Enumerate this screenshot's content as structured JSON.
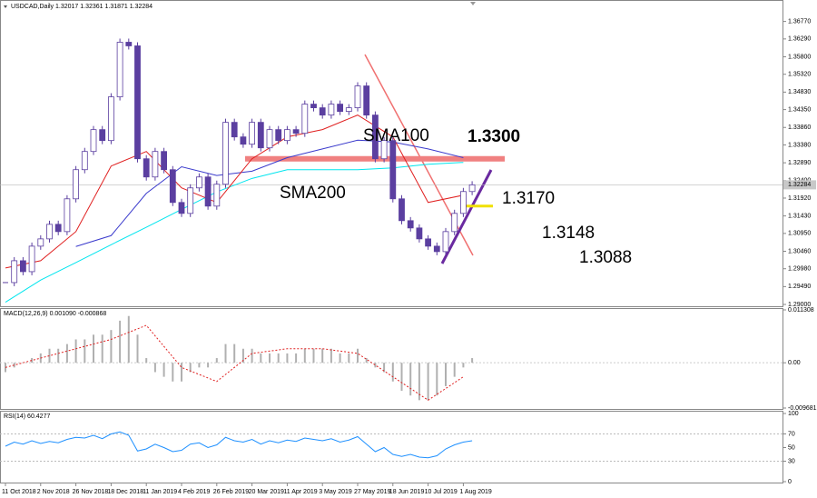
{
  "chart_data": [
    {
      "type": "candlestick",
      "title": "USDCAD,Daily  1.32017 1.32361 1.31871 1.32284",
      "closes": [
        1.296,
        1.302,
        1.299,
        1.306,
        1.308,
        1.312,
        1.31,
        1.319,
        1.327,
        1.332,
        1.338,
        1.335,
        1.347,
        1.362,
        1.361,
        1.33,
        1.325,
        1.332,
        1.327,
        1.318,
        1.315,
        1.322,
        1.325,
        1.317,
        1.323,
        1.34,
        1.336,
        1.334,
        1.34,
        1.333,
        1.338,
        1.335,
        1.338,
        1.337,
        1.345,
        1.344,
        1.342,
        1.345,
        1.343,
        1.344,
        1.35,
        1.342,
        1.33,
        1.335,
        1.319,
        1.313,
        1.311,
        1.308,
        1.306,
        1.3045,
        1.31,
        1.315,
        1.321,
        1.32284
      ],
      "color": "#5b3fa0",
      "lines": [
        {
          "color": "#00e5ee",
          "values": [
            1.2906,
            1.2967,
            1.3015,
            1.3064,
            1.3112,
            1.3161,
            1.3209,
            1.3246,
            1.327,
            1.327,
            1.327,
            1.3275,
            1.3285,
            1.329
          ]
        },
        {
          "color": "#3a3acc",
          "values": [
            null,
            null,
            1.3059,
            1.3089,
            1.3205,
            1.3278,
            1.3254,
            1.3266,
            1.3303,
            1.3327,
            1.3351,
            1.3346,
            1.3327,
            1.3303
          ]
        },
        {
          "color": "#e02020",
          "values": [
            1.3,
            1.302,
            1.31,
            1.328,
            1.332,
            1.322,
            1.318,
            1.33,
            1.336,
            1.338,
            1.342,
            1.336,
            1.318,
            1.32
          ]
        }
      ],
      "annotations": [
        {
          "text": "SMA100",
          "color": "#3a3acc"
        },
        {
          "text": "SMA200",
          "color": "#00e5ee"
        },
        {
          "text": "1.3148",
          "color": "#2e9e2e"
        },
        {
          "text": "1.3088",
          "color": "#2e9e2e"
        }
      ],
      "levels": [
        {
          "value": 1.33,
          "label": "1.3300",
          "color": "#f08080",
          "text_color": "#e03030"
        },
        {
          "value": 1.317,
          "label": "1.3170",
          "color": "#f0e000",
          "text_color": "#3a3acc"
        }
      ],
      "last_price": 1.32284,
      "ylim": [
        1.2895,
        1.3706
      ],
      "yticks": [
        {
          "value": 1.3677,
          "label": "1.36770"
        },
        {
          "value": 1.3629,
          "label": "1.36290"
        },
        {
          "value": 1.358,
          "label": "1.35800"
        },
        {
          "value": 1.3532,
          "label": "1.35320"
        },
        {
          "value": 1.3483,
          "label": "1.34830"
        },
        {
          "value": 1.3435,
          "label": "1.34350"
        },
        {
          "value": 1.3386,
          "label": "1.33860"
        },
        {
          "value": 1.3338,
          "label": "1.33380"
        },
        {
          "value": 1.3289,
          "label": "1.32890"
        },
        {
          "value": 1.324,
          "label": "1.32400"
        },
        {
          "value": 1.3192,
          "label": "1.31920"
        },
        {
          "value": 1.3143,
          "label": "1.31430"
        },
        {
          "value": 1.3095,
          "label": "1.30950"
        },
        {
          "value": 1.3046,
          "label": "1.30460"
        },
        {
          "value": 1.2998,
          "label": "1.29980"
        },
        {
          "value": 1.2949,
          "label": "1.29490"
        },
        {
          "value": 1.29,
          "label": "1.29000"
        }
      ]
    },
    {
      "type": "macd",
      "title": "MACD(12,26,9) 0.001090 -0.000868",
      "values": [
        -0.002,
        -0.001,
        0.0,
        0.001,
        0.002,
        0.003,
        0.003,
        0.004,
        0.005,
        0.005,
        0.006,
        0.006,
        0.007,
        0.009,
        0.01,
        0.006,
        0.001,
        -0.002,
        -0.003,
        -0.004,
        -0.004,
        -0.002,
        -0.001,
        -0.001,
        0.001,
        0.004,
        0.004,
        0.003,
        0.003,
        0.002,
        0.002,
        0.002,
        0.002,
        0.002,
        0.003,
        0.003,
        0.003,
        0.003,
        0.002,
        0.002,
        0.003,
        0.001,
        -0.001,
        -0.002,
        -0.004,
        -0.006,
        -0.007,
        -0.008,
        -0.008,
        -0.007,
        -0.005,
        -0.003,
        -0.001,
        0.001
      ],
      "color": "#b0b0b0",
      "signal": [
        -0.001,
        0.001,
        0.003,
        0.005,
        0.008,
        -0.001,
        -0.004,
        0.002,
        0.003,
        0.003,
        0.002,
        -0.003,
        -0.008,
        -0.003
      ],
      "signal_color": "#e02020",
      "ylim": [
        -0.009681,
        0.011308
      ],
      "yticks": [
        {
          "value": 0.011308,
          "label": "0.011308"
        },
        {
          "value": 0,
          "label": "0.00"
        },
        {
          "value": -0.009681,
          "label": "-0.009681"
        }
      ]
    },
    {
      "type": "line",
      "title": "RSI(14) 60.4277",
      "values": [
        52,
        58,
        55,
        60,
        56,
        59,
        57,
        62,
        65,
        64,
        68,
        63,
        70,
        73,
        68,
        45,
        48,
        55,
        50,
        44,
        46,
        55,
        57,
        50,
        54,
        65,
        60,
        58,
        62,
        55,
        60,
        57,
        61,
        59,
        64,
        62,
        60,
        63,
        58,
        61,
        66,
        55,
        44,
        50,
        40,
        37,
        40,
        36,
        35,
        38,
        48,
        54,
        58,
        60
      ],
      "color": "#1e90ff",
      "ylim": [
        0,
        100
      ],
      "yticks": [
        0,
        30,
        50,
        70,
        100
      ],
      "levels": [
        70,
        30
      ],
      "x_labels": [
        "11 Oct 2018",
        "2 Nov 2018",
        "26 Nov 2018",
        "18 Dec 2018",
        "11 Jan 2019",
        "4 Feb 2019",
        "26 Feb 2019",
        "20 Mar 2019",
        "11 Apr 2019",
        "3 May 2019",
        "27 May 2019",
        "18 Jun 2019",
        "10 Jul 2019",
        "1 Aug 2019"
      ]
    }
  ]
}
